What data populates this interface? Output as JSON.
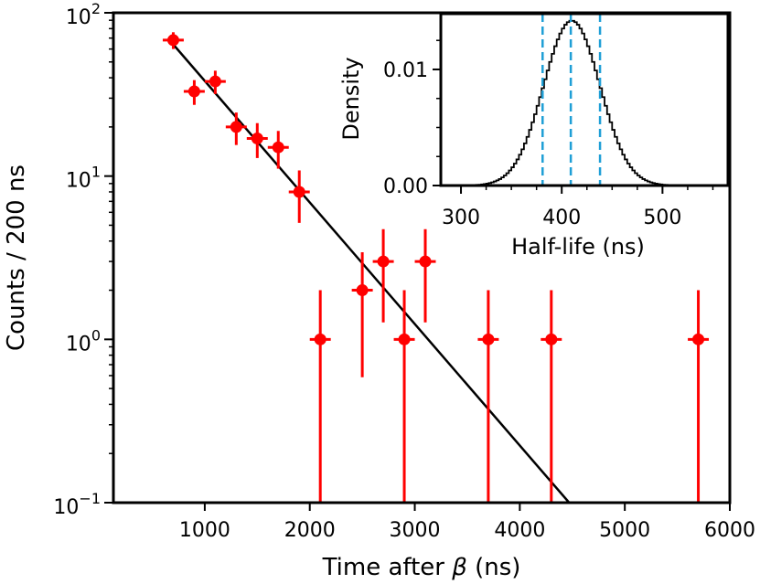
{
  "chart_data": [
    {
      "type": "scatter",
      "title": "",
      "xlabel_pre": "Time after ",
      "xlabel_sym": "β",
      "xlabel_post": " (ns)",
      "ylabel": "Counts / 200 ns",
      "xlim": [
        130,
        6000
      ],
      "ylim": [
        0.1,
        100
      ],
      "yscale": "log",
      "grid": false,
      "xticks": [
        1000,
        2000,
        3000,
        4000,
        5000,
        6000
      ],
      "yticks": [
        {
          "value": 0.1,
          "base": "10",
          "exp": "−1"
        },
        {
          "value": 1,
          "base": "10",
          "exp": "0"
        },
        {
          "value": 10,
          "base": "10",
          "exp": "1"
        },
        {
          "value": 100,
          "base": "10",
          "exp": "2"
        }
      ],
      "series": [
        {
          "marker_color": "#ff0000",
          "points": [
            {
              "x": 700,
              "y": 68,
              "xerr": 100,
              "ylo": 60,
              "yhi": 76
            },
            {
              "x": 900,
              "y": 33,
              "xerr": 100,
              "ylo": 27.3,
              "yhi": 38.7
            },
            {
              "x": 1100,
              "y": 38,
              "xerr": 100,
              "ylo": 31.8,
              "yhi": 44.2
            },
            {
              "x": 1300,
              "y": 20,
              "xerr": 100,
              "ylo": 15.5,
              "yhi": 24.5
            },
            {
              "x": 1500,
              "y": 17,
              "xerr": 100,
              "ylo": 12.9,
              "yhi": 21.1
            },
            {
              "x": 1700,
              "y": 15,
              "xerr": 100,
              "ylo": 11.1,
              "yhi": 18.9
            },
            {
              "x": 1900,
              "y": 8,
              "xerr": 100,
              "ylo": 5.17,
              "yhi": 10.83
            },
            {
              "x": 2100,
              "y": 1,
              "xerr": 100,
              "ylo": 0.1,
              "yhi": 2
            },
            {
              "x": 2500,
              "y": 2,
              "xerr": 100,
              "ylo": 0.586,
              "yhi": 3.414
            },
            {
              "x": 2700,
              "y": 3,
              "xerr": 100,
              "ylo": 1.27,
              "yhi": 4.73
            },
            {
              "x": 2900,
              "y": 1,
              "xerr": 100,
              "ylo": 0.1,
              "yhi": 2
            },
            {
              "x": 3100,
              "y": 3,
              "xerr": 100,
              "ylo": 1.27,
              "yhi": 4.73
            },
            {
              "x": 3700,
              "y": 1,
              "xerr": 100,
              "ylo": 0.1,
              "yhi": 2
            },
            {
              "x": 4300,
              "y": 1,
              "xerr": 100,
              "ylo": 0.1,
              "yhi": 2
            },
            {
              "x": 5700,
              "y": 1,
              "xerr": 100,
              "ylo": 0.1,
              "yhi": 2
            }
          ]
        },
        {
          "type": "line",
          "line_color": "#000000",
          "x": [
            700,
            4470
          ],
          "y": [
            64,
            0.1
          ]
        }
      ]
    },
    {
      "type": "histogram",
      "inset": true,
      "title": "",
      "xlabel": "Half-life (ns)",
      "ylabel": "Density",
      "xlim": [
        280,
        565
      ],
      "ylim": [
        0,
        0.0148
      ],
      "xticks": [
        300,
        400,
        500
      ],
      "yticks": [
        {
          "value": 0,
          "label": "0.00"
        },
        {
          "value": 0.01,
          "label": "0.01"
        }
      ],
      "line_color": "#000000",
      "vlines": [
        381,
        409,
        438
      ],
      "vline_color": "#1f9fd6",
      "distribution": {
        "mean": 410,
        "sigma": 28,
        "peak_density": 0.0142
      }
    }
  ]
}
